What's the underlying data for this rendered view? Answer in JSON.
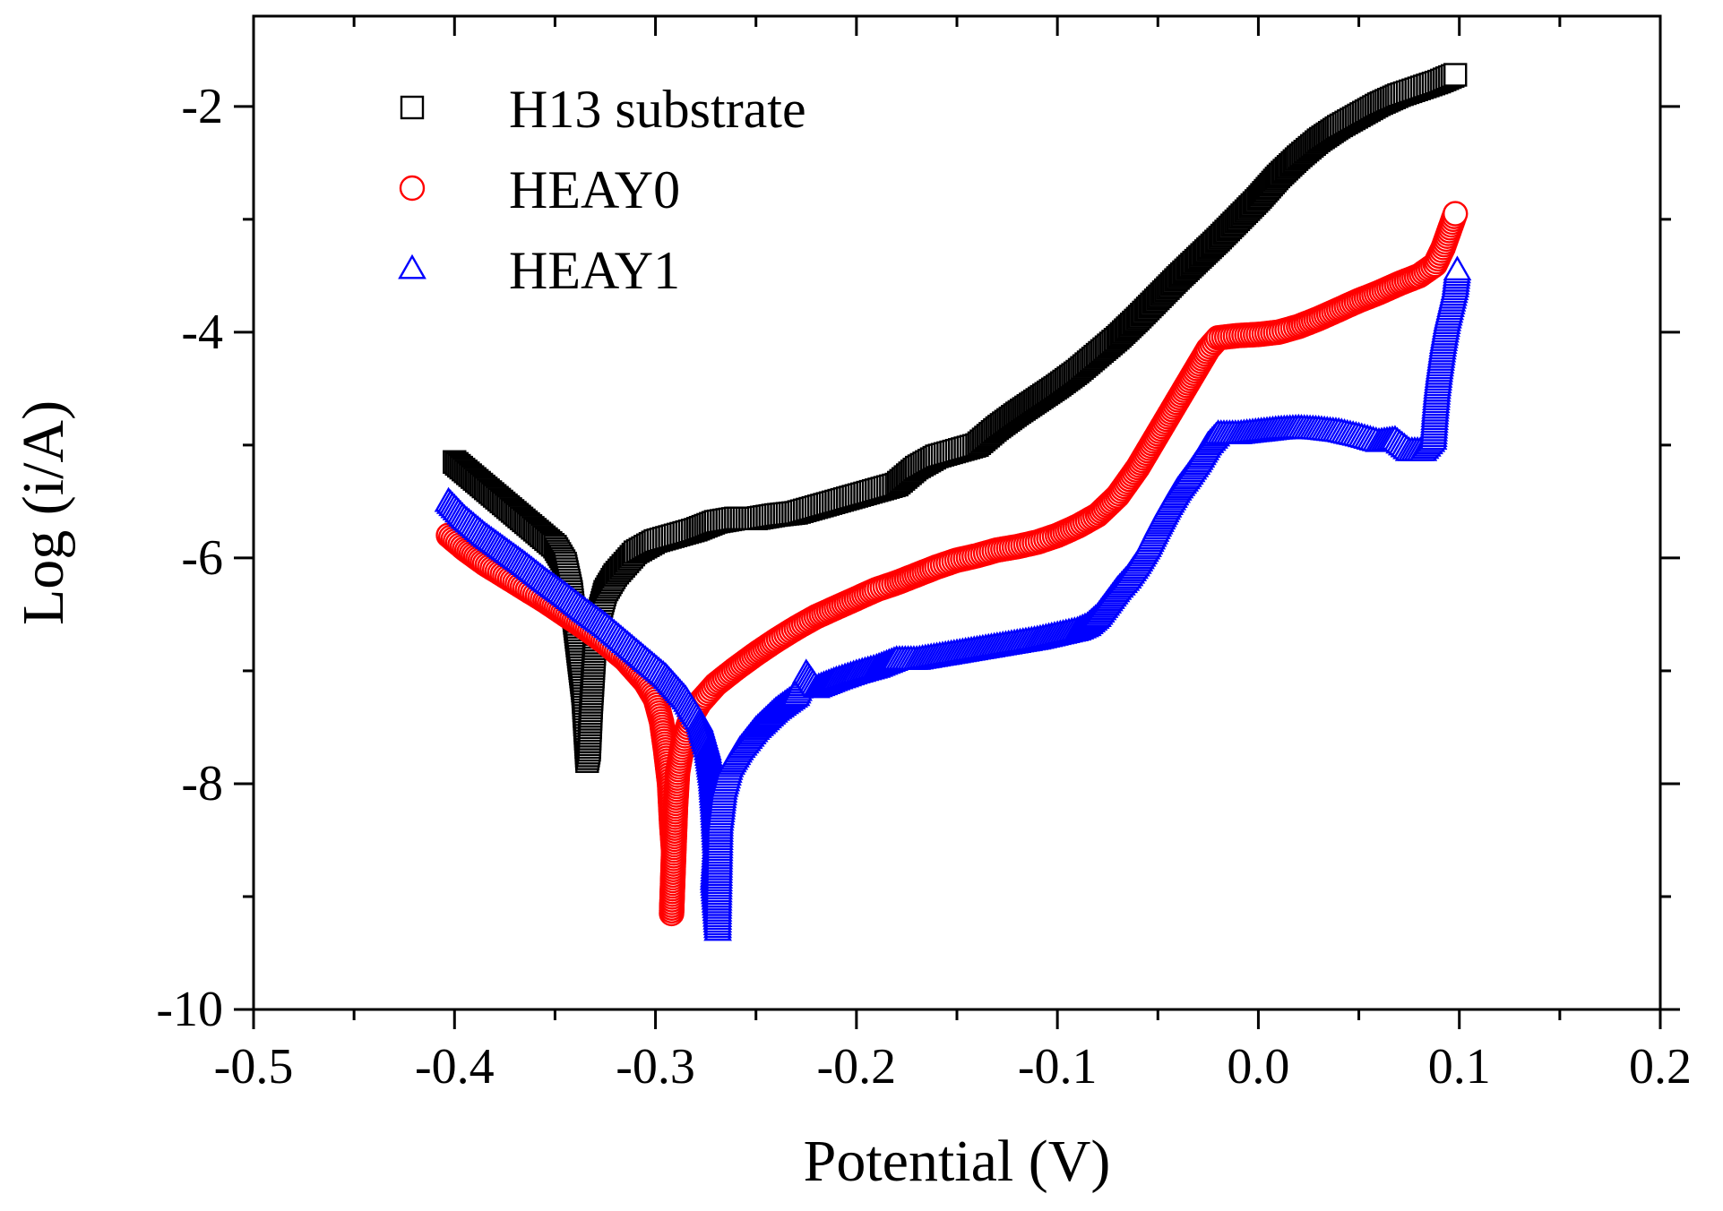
{
  "chart_data": {
    "type": "scatter",
    "title": "",
    "xlabel": "Potential (V)",
    "ylabel": "Log (i/A)",
    "xlim": [
      -0.5,
      0.2
    ],
    "ylim": [
      -10,
      -1.2
    ],
    "x_ticks": [
      -0.5,
      -0.4,
      -0.3,
      -0.2,
      -0.1,
      0.0,
      0.1,
      0.2
    ],
    "x_tick_labels": [
      "-0.5",
      "-0.4",
      "-0.3",
      "-0.2",
      "-0.1",
      "0.0",
      "0.1",
      "0.2"
    ],
    "y_ticks": [
      -10,
      -8,
      -6,
      -4,
      -2
    ],
    "y_tick_labels": [
      "-10",
      "-8",
      "-6",
      "-4",
      "-2"
    ],
    "grid": false,
    "legend_position": "top-left",
    "series": [
      {
        "name": "H13 substrate",
        "marker": "square",
        "color": "#000000",
        "points": [
          [
            -0.4,
            -5.15
          ],
          [
            -0.39,
            -5.3
          ],
          [
            -0.38,
            -5.45
          ],
          [
            -0.37,
            -5.6
          ],
          [
            -0.36,
            -5.75
          ],
          [
            -0.35,
            -5.9
          ],
          [
            -0.345,
            -6.05
          ],
          [
            -0.342,
            -6.3
          ],
          [
            -0.34,
            -6.6
          ],
          [
            -0.338,
            -6.9
          ],
          [
            -0.336,
            -7.2
          ],
          [
            -0.335,
            -7.5
          ],
          [
            -0.334,
            -7.8
          ],
          [
            -0.333,
            -7.7
          ],
          [
            -0.332,
            -7.3
          ],
          [
            -0.331,
            -7.0
          ],
          [
            -0.33,
            -6.7
          ],
          [
            -0.328,
            -6.5
          ],
          [
            -0.325,
            -6.3
          ],
          [
            -0.32,
            -6.15
          ],
          [
            -0.315,
            -6.05
          ],
          [
            -0.31,
            -5.95
          ],
          [
            -0.3,
            -5.85
          ],
          [
            -0.29,
            -5.8
          ],
          [
            -0.28,
            -5.75
          ],
          [
            -0.27,
            -5.68
          ],
          [
            -0.26,
            -5.65
          ],
          [
            -0.25,
            -5.65
          ],
          [
            -0.24,
            -5.62
          ],
          [
            -0.23,
            -5.6
          ],
          [
            -0.22,
            -5.55
          ],
          [
            -0.21,
            -5.5
          ],
          [
            -0.2,
            -5.45
          ],
          [
            -0.19,
            -5.4
          ],
          [
            -0.18,
            -5.35
          ],
          [
            -0.17,
            -5.2
          ],
          [
            -0.16,
            -5.1
          ],
          [
            -0.15,
            -5.05
          ],
          [
            -0.14,
            -5.0
          ],
          [
            -0.13,
            -4.85
          ],
          [
            -0.12,
            -4.72
          ],
          [
            -0.11,
            -4.6
          ],
          [
            -0.1,
            -4.48
          ],
          [
            -0.09,
            -4.35
          ],
          [
            -0.08,
            -4.2
          ],
          [
            -0.07,
            -4.05
          ],
          [
            -0.06,
            -3.88
          ],
          [
            -0.05,
            -3.7
          ],
          [
            -0.04,
            -3.52
          ],
          [
            -0.03,
            -3.35
          ],
          [
            -0.02,
            -3.18
          ],
          [
            -0.01,
            -3.0
          ],
          [
            0.0,
            -2.82
          ],
          [
            0.01,
            -2.62
          ],
          [
            0.02,
            -2.45
          ],
          [
            0.03,
            -2.3
          ],
          [
            0.04,
            -2.18
          ],
          [
            0.05,
            -2.08
          ],
          [
            0.06,
            -1.98
          ],
          [
            0.07,
            -1.9
          ],
          [
            0.08,
            -1.84
          ],
          [
            0.09,
            -1.78
          ],
          [
            0.098,
            -1.72
          ]
        ]
      },
      {
        "name": "HEAY0",
        "marker": "circle",
        "color": "#ff0000",
        "points": [
          [
            -0.403,
            -5.8
          ],
          [
            -0.395,
            -5.92
          ],
          [
            -0.385,
            -6.05
          ],
          [
            -0.375,
            -6.16
          ],
          [
            -0.365,
            -6.27
          ],
          [
            -0.355,
            -6.38
          ],
          [
            -0.345,
            -6.5
          ],
          [
            -0.335,
            -6.62
          ],
          [
            -0.325,
            -6.75
          ],
          [
            -0.315,
            -6.9
          ],
          [
            -0.305,
            -7.1
          ],
          [
            -0.3,
            -7.25
          ],
          [
            -0.297,
            -7.45
          ],
          [
            -0.295,
            -7.7
          ],
          [
            -0.293,
            -8.0
          ],
          [
            -0.292,
            -8.35
          ],
          [
            -0.291,
            -8.6
          ],
          [
            -0.292,
            -9.15
          ],
          [
            -0.29,
            -8.2
          ],
          [
            -0.289,
            -7.9
          ],
          [
            -0.287,
            -7.7
          ],
          [
            -0.285,
            -7.55
          ],
          [
            -0.282,
            -7.4
          ],
          [
            -0.278,
            -7.28
          ],
          [
            -0.27,
            -7.12
          ],
          [
            -0.26,
            -6.98
          ],
          [
            -0.25,
            -6.85
          ],
          [
            -0.24,
            -6.73
          ],
          [
            -0.23,
            -6.62
          ],
          [
            -0.22,
            -6.52
          ],
          [
            -0.21,
            -6.44
          ],
          [
            -0.2,
            -6.36
          ],
          [
            -0.19,
            -6.28
          ],
          [
            -0.18,
            -6.22
          ],
          [
            -0.17,
            -6.15
          ],
          [
            -0.16,
            -6.08
          ],
          [
            -0.15,
            -6.02
          ],
          [
            -0.14,
            -5.98
          ],
          [
            -0.13,
            -5.93
          ],
          [
            -0.12,
            -5.9
          ],
          [
            -0.11,
            -5.86
          ],
          [
            -0.1,
            -5.8
          ],
          [
            -0.09,
            -5.72
          ],
          [
            -0.08,
            -5.62
          ],
          [
            -0.07,
            -5.45
          ],
          [
            -0.06,
            -5.2
          ],
          [
            -0.055,
            -5.05
          ],
          [
            -0.05,
            -4.9
          ],
          [
            -0.045,
            -4.75
          ],
          [
            -0.04,
            -4.6
          ],
          [
            -0.035,
            -4.45
          ],
          [
            -0.03,
            -4.3
          ],
          [
            -0.025,
            -4.15
          ],
          [
            -0.02,
            -4.05
          ],
          [
            -0.01,
            -4.03
          ],
          [
            0.0,
            -4.02
          ],
          [
            0.01,
            -4.0
          ],
          [
            0.02,
            -3.95
          ],
          [
            0.03,
            -3.88
          ],
          [
            0.04,
            -3.8
          ],
          [
            0.05,
            -3.72
          ],
          [
            0.06,
            -3.65
          ],
          [
            0.07,
            -3.57
          ],
          [
            0.08,
            -3.5
          ],
          [
            0.088,
            -3.4
          ],
          [
            0.092,
            -3.25
          ],
          [
            0.095,
            -3.1
          ],
          [
            0.098,
            -2.95
          ]
        ]
      },
      {
        "name": "HEAY1",
        "marker": "triangle",
        "color": "#0000ff",
        "points": [
          [
            -0.403,
            -5.5
          ],
          [
            -0.395,
            -5.65
          ],
          [
            -0.385,
            -5.8
          ],
          [
            -0.375,
            -5.93
          ],
          [
            -0.365,
            -6.06
          ],
          [
            -0.355,
            -6.2
          ],
          [
            -0.345,
            -6.33
          ],
          [
            -0.335,
            -6.47
          ],
          [
            -0.325,
            -6.6
          ],
          [
            -0.315,
            -6.75
          ],
          [
            -0.305,
            -6.9
          ],
          [
            -0.295,
            -7.05
          ],
          [
            -0.285,
            -7.25
          ],
          [
            -0.278,
            -7.45
          ],
          [
            -0.274,
            -7.7
          ],
          [
            -0.272,
            -7.95
          ],
          [
            -0.271,
            -8.2
          ],
          [
            -0.27,
            -8.55
          ],
          [
            -0.271,
            -8.85
          ],
          [
            -0.269,
            -9.3
          ],
          [
            -0.268,
            -8.35
          ],
          [
            -0.266,
            -8.05
          ],
          [
            -0.263,
            -7.85
          ],
          [
            -0.258,
            -7.7
          ],
          [
            -0.25,
            -7.52
          ],
          [
            -0.24,
            -7.35
          ],
          [
            -0.23,
            -7.22
          ],
          [
            -0.225,
            -7.02
          ],
          [
            -0.22,
            -7.15
          ],
          [
            -0.21,
            -7.08
          ],
          [
            -0.2,
            -7.02
          ],
          [
            -0.19,
            -6.97
          ],
          [
            -0.18,
            -6.9
          ],
          [
            -0.17,
            -6.9
          ],
          [
            -0.16,
            -6.87
          ],
          [
            -0.15,
            -6.84
          ],
          [
            -0.14,
            -6.81
          ],
          [
            -0.13,
            -6.78
          ],
          [
            -0.12,
            -6.75
          ],
          [
            -0.11,
            -6.72
          ],
          [
            -0.1,
            -6.68
          ],
          [
            -0.09,
            -6.64
          ],
          [
            -0.085,
            -6.6
          ],
          [
            -0.08,
            -6.52
          ],
          [
            -0.075,
            -6.4
          ],
          [
            -0.07,
            -6.28
          ],
          [
            -0.065,
            -6.18
          ],
          [
            -0.06,
            -6.05
          ],
          [
            -0.055,
            -5.9
          ],
          [
            -0.05,
            -5.72
          ],
          [
            -0.045,
            -5.55
          ],
          [
            -0.04,
            -5.4
          ],
          [
            -0.035,
            -5.28
          ],
          [
            -0.03,
            -5.15
          ],
          [
            -0.025,
            -5.0
          ],
          [
            -0.02,
            -4.9
          ],
          [
            -0.01,
            -4.9
          ],
          [
            0.0,
            -4.88
          ],
          [
            0.01,
            -4.86
          ],
          [
            0.02,
            -4.85
          ],
          [
            0.03,
            -4.86
          ],
          [
            0.04,
            -4.88
          ],
          [
            0.05,
            -4.92
          ],
          [
            0.06,
            -4.97
          ],
          [
            0.068,
            -4.95
          ],
          [
            0.075,
            -5.05
          ],
          [
            0.082,
            -5.05
          ],
          [
            0.087,
            -4.95
          ],
          [
            0.088,
            -4.7
          ],
          [
            0.089,
            -4.5
          ],
          [
            0.09,
            -4.35
          ],
          [
            0.092,
            -4.1
          ],
          [
            0.094,
            -3.9
          ],
          [
            0.096,
            -3.75
          ],
          [
            0.098,
            -3.6
          ],
          [
            0.099,
            -3.45
          ]
        ]
      }
    ]
  }
}
